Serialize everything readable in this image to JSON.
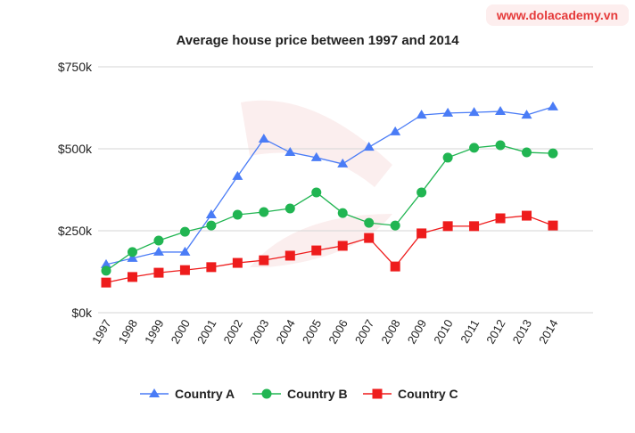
{
  "watermark": "www.dolacademy.vn",
  "chart_data": {
    "type": "line",
    "title": "Average house price between 1997 and 2014",
    "xlabel": "",
    "ylabel": "",
    "categories": [
      "1997",
      "1998",
      "1999",
      "2000",
      "2001",
      "2002",
      "2003",
      "2004",
      "2005",
      "2006",
      "2007",
      "2008",
      "2009",
      "2010",
      "2011",
      "2012",
      "2013",
      "2014"
    ],
    "ylim": [
      0,
      750
    ],
    "yticks": [
      0,
      250,
      500,
      750
    ],
    "ytick_labels": [
      "$0k",
      "$250k",
      "$500k",
      "$750k"
    ],
    "grid": true,
    "legend": "bottom",
    "series": [
      {
        "name": "Country A",
        "color": "#4a7cf6",
        "marker": "triangle",
        "values": [
          147,
          166,
          185,
          185,
          299,
          416,
          530,
          489,
          473,
          454,
          505,
          552,
          603,
          609,
          611,
          614,
          603,
          628
        ]
      },
      {
        "name": "Country B",
        "color": "#21b552",
        "marker": "circle",
        "values": [
          128,
          185,
          220,
          247,
          266,
          299,
          307,
          318,
          367,
          304,
          274,
          266,
          367,
          473,
          503,
          511,
          489,
          486
        ]
      },
      {
        "name": "Country C",
        "color": "#ee1c1c",
        "marker": "square",
        "values": [
          92,
          109,
          122,
          130,
          139,
          152,
          160,
          174,
          190,
          204,
          228,
          141,
          242,
          264,
          264,
          288,
          296,
          266
        ]
      }
    ]
  }
}
